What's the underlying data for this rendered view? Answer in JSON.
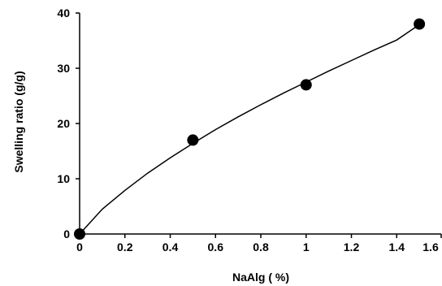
{
  "chart_data": {
    "type": "scatter",
    "xlabel": "NaAlg ( %)",
    "ylabel": "Swelling ratio (g/g)",
    "xlim": [
      0,
      1.6
    ],
    "ylim": [
      0,
      40
    ],
    "xticks": [
      "0",
      "0.2",
      "0.4",
      "0.6",
      "0.8",
      "1",
      "1.2",
      "1.4",
      "1.6"
    ],
    "yticks": [
      "0",
      "10",
      "20",
      "30",
      "40"
    ],
    "grid": false,
    "series": [
      {
        "points": [
          {
            "x": 0,
            "y": 0
          },
          {
            "x": 0.5,
            "y": 17
          },
          {
            "x": 1,
            "y": 27
          },
          {
            "x": 1.5,
            "y": 38
          }
        ],
        "fit_curve": [
          {
            "x": 0,
            "y": 0
          },
          {
            "x": 0.1,
            "y": 4.5
          },
          {
            "x": 0.2,
            "y": 7.9
          },
          {
            "x": 0.3,
            "y": 11.0
          },
          {
            "x": 0.4,
            "y": 13.8
          },
          {
            "x": 0.5,
            "y": 16.4
          },
          {
            "x": 0.6,
            "y": 18.9
          },
          {
            "x": 0.7,
            "y": 21.2
          },
          {
            "x": 0.8,
            "y": 23.4
          },
          {
            "x": 0.9,
            "y": 25.5
          },
          {
            "x": 1.0,
            "y": 27.5
          },
          {
            "x": 1.1,
            "y": 29.5
          },
          {
            "x": 1.2,
            "y": 31.4
          },
          {
            "x": 1.3,
            "y": 33.3
          },
          {
            "x": 1.4,
            "y": 35.1
          },
          {
            "x": 1.5,
            "y": 37.9
          }
        ],
        "color": "#000000"
      }
    ]
  }
}
